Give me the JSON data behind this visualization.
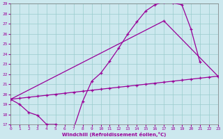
{
  "xlabel": "Windchill (Refroidissement éolien,°C)",
  "bg_color": "#cce8ee",
  "grid_color": "#99cccc",
  "line_color": "#990099",
  "xlim": [
    0,
    23
  ],
  "ylim": [
    17,
    29
  ],
  "xticks": [
    0,
    1,
    2,
    3,
    4,
    5,
    6,
    7,
    8,
    9,
    10,
    11,
    12,
    13,
    14,
    15,
    16,
    17,
    18,
    19,
    20,
    21,
    22,
    23
  ],
  "yticks": [
    17,
    18,
    19,
    20,
    21,
    22,
    23,
    24,
    25,
    26,
    27,
    28,
    29
  ],
  "curve1_x": [
    0,
    1,
    2,
    3,
    4,
    5,
    6,
    7,
    8,
    9,
    10,
    11,
    12,
    13,
    14,
    15,
    16,
    17,
    18,
    19,
    20,
    21
  ],
  "curve1_y": [
    19.5,
    19.0,
    18.2,
    17.9,
    17.0,
    17.0,
    16.8,
    16.6,
    19.3,
    21.3,
    22.1,
    23.3,
    24.6,
    26.0,
    27.2,
    28.3,
    28.9,
    29.2,
    29.1,
    28.9,
    26.5,
    23.2
  ],
  "curve2_x": [
    0,
    1,
    2,
    3,
    4,
    5,
    6,
    7,
    8,
    9,
    10,
    11,
    12,
    13,
    14,
    15,
    16,
    17,
    18,
    19,
    20,
    21,
    22,
    23
  ],
  "curve2_y": [
    19.5,
    19.6,
    19.7,
    19.8,
    19.9,
    20.0,
    20.1,
    20.2,
    20.3,
    20.4,
    20.5,
    20.6,
    20.7,
    20.8,
    20.9,
    21.0,
    21.1,
    21.2,
    21.3,
    21.4,
    21.5,
    21.6,
    21.7,
    21.8
  ],
  "curve3_x": [
    0,
    17,
    23
  ],
  "curve3_y": [
    19.5,
    27.3,
    21.8
  ]
}
